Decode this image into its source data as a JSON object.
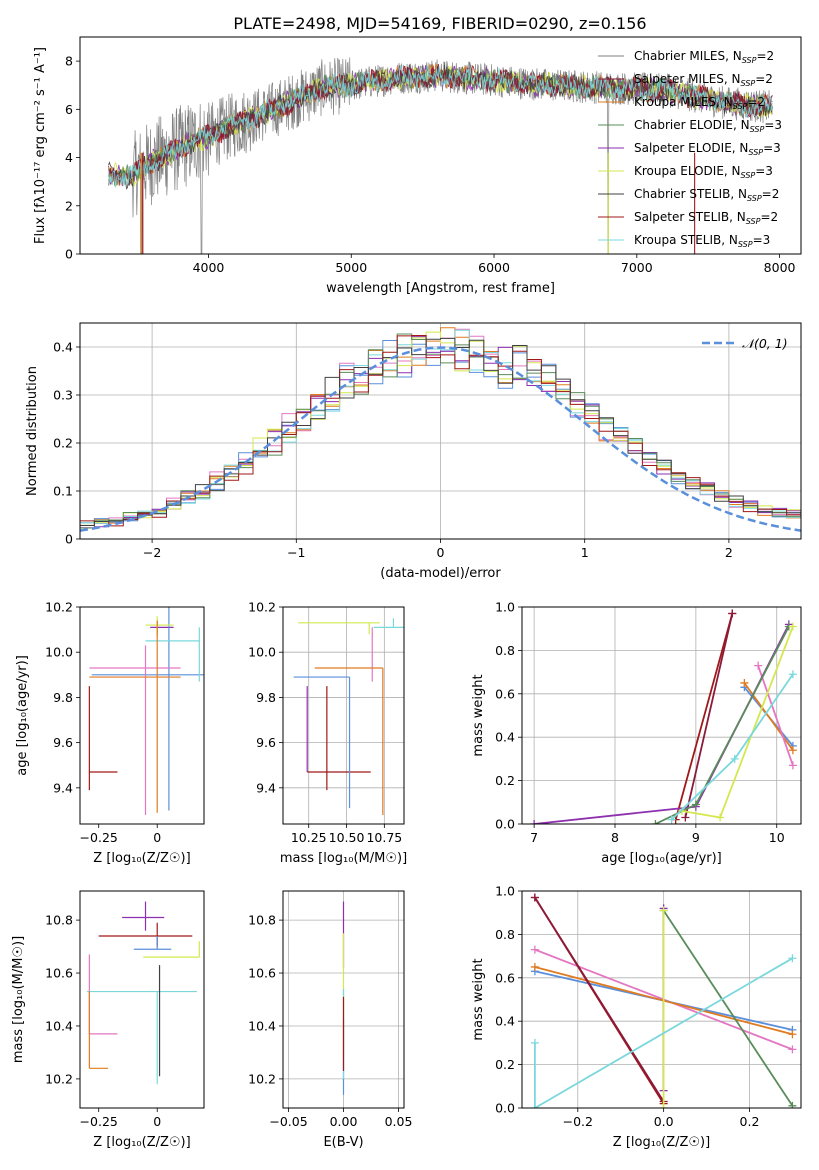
{
  "figure_title": "PLATE=2498, MJD=54169, FIBERID=0290, z=0.156",
  "colors": {
    "series": [
      "#808080",
      "#8b1a3b",
      "#e07b20",
      "#5a8c5a",
      "#8e2fb0",
      "#d4e84e",
      "#404040",
      "#a01818",
      "#7ad8dc"
    ],
    "set2": [
      "#e377c2",
      "#5a8fdc",
      "#e07b20",
      "#8e2fb0",
      "#7ad8dc",
      "#d4e84e",
      "#5a8c5a",
      "#a01818",
      "#404040"
    ],
    "grid": "#b0b0b0",
    "normal_curve": "#5a8fdc"
  },
  "chart_data": [
    {
      "id": "spectrum",
      "type": "line",
      "xlabel": "wavelength [Angstrom, rest frame]",
      "ylabel": "Flux [f$_\\lambda$10$^{-17}$ erg cm$^{-2}$ s$^{-1}$ A$^{-1}$]",
      "ylabel_display": "Flux [fλ10⁻¹⁷ erg cm⁻² s⁻¹ A⁻¹]",
      "xlim": [
        3100,
        8150
      ],
      "ylim": [
        0,
        9
      ],
      "xticks": [
        4000,
        5000,
        6000,
        7000,
        8000
      ],
      "yticks": [
        0,
        2,
        4,
        6,
        8
      ],
      "legend_position": "right",
      "legend": [
        {
          "name": "Chabrier MILES, N",
          "sub": "SSP",
          "suffix": "=2"
        },
        {
          "name": "Salpeter MILES, N",
          "sub": "SSP",
          "suffix": "=2"
        },
        {
          "name": "Kroupa MILES, N",
          "sub": "SSP",
          "suffix": "=2"
        },
        {
          "name": "Chabrier ELODIE, N",
          "sub": "SSP",
          "suffix": "=3"
        },
        {
          "name": "Salpeter ELODIE, N",
          "sub": "SSP",
          "suffix": "=3"
        },
        {
          "name": "Kroupa ELODIE, N",
          "sub": "SSP",
          "suffix": "=3"
        },
        {
          "name": "Chabrier STELIB, N",
          "sub": "SSP",
          "suffix": "=2"
        },
        {
          "name": "Salpeter STELIB, N",
          "sub": "SSP",
          "suffix": "=2"
        },
        {
          "name": "Kroupa STELIB, N",
          "sub": "SSP",
          "suffix": "=3"
        }
      ],
      "continuum": {
        "x": [
          3300,
          3450,
          3600,
          3800,
          4000,
          4200,
          4500,
          4800,
          5000,
          5300,
          5600,
          6000,
          6400,
          6800,
          7200,
          7600,
          7900
        ],
        "y": [
          3.3,
          3.2,
          3.8,
          4.4,
          4.9,
          5.4,
          6.1,
          6.9,
          7.0,
          7.3,
          7.4,
          7.2,
          7.0,
          6.9,
          6.8,
          6.3,
          6.1
        ]
      }
    },
    {
      "id": "residuals",
      "type": "histogram",
      "xlabel": "(data-model)/error",
      "ylabel": "Normed distribution",
      "xlim": [
        -2.5,
        2.5
      ],
      "ylim": [
        0,
        0.45
      ],
      "xticks": [
        -2,
        -1,
        0,
        1,
        2
      ],
      "yticks": [
        0,
        0.1,
        0.2,
        0.3,
        0.4
      ],
      "legend": "𝒩(0, 1)",
      "bin_width": 0.1
    },
    {
      "id": "age_vs_Z",
      "type": "scatter",
      "xlabel": "Z [log₁₀(Z/Z☉)]",
      "ylabel": "age  [log₁₀(age/yr)]",
      "xlim": [
        -0.33,
        0.2
      ],
      "ylim": [
        9.24,
        10.2
      ],
      "xticks": [
        -0.25,
        0.0
      ],
      "ytick_labels": [
        "9.4",
        "9.6",
        "9.8",
        "10.0",
        "10.2"
      ],
      "yticks": [
        9.4,
        9.6,
        9.8,
        10.0,
        10.2
      ],
      "points": [
        {
          "x": 0.0,
          "y": 10.11,
          "xerr": [
            0.03,
            0.07
          ],
          "yerr": [
            0.03,
            0.03
          ]
        },
        {
          "x": -0.29,
          "y": 9.47,
          "xerr": [
            0.0,
            0.12
          ],
          "yerr": [
            0.08,
            0.38
          ]
        },
        {
          "x": 0.05,
          "y": 9.9,
          "xerr": [
            0.33,
            0.15
          ],
          "yerr": [
            0.6,
            0.3
          ]
        },
        {
          "x": 0.0,
          "y": 10.12,
          "xerr": [
            0.05,
            0.07
          ],
          "yerr": [
            0.05,
            0.04
          ]
        },
        {
          "x": 0.18,
          "y": 10.05,
          "xerr": [
            0.23,
            0.0
          ],
          "yerr": [
            0.18,
            0.06
          ]
        },
        {
          "x": -0.05,
          "y": 9.93,
          "xerr": [
            0.24,
            0.15
          ],
          "yerr": [
            0.65,
            0.1
          ]
        },
        {
          "x": 0.0,
          "y": 9.89,
          "xerr": [
            0.29,
            0.1
          ],
          "yerr": [
            0.6,
            0.25
          ]
        }
      ]
    },
    {
      "id": "age_vs_mass",
      "type": "scatter",
      "xlabel": "mass [log₁₀(M/M☉)]",
      "ylabel": "",
      "xlim": [
        10.08,
        10.88
      ],
      "ylim": [
        9.24,
        10.2
      ],
      "xticks": [
        10.25,
        10.5,
        10.75
      ],
      "xtick_labels": [
        "10.25",
        "10.50",
        "10.75"
      ],
      "ytick_labels": [
        "9.4",
        "9.6",
        "9.8",
        "10.0",
        "10.2"
      ],
      "yticks": [
        9.4,
        9.6,
        9.8,
        10.0,
        10.2
      ],
      "points": [
        {
          "x": 10.24,
          "y": 9.47,
          "xerr": [
            0.0,
            0.0
          ],
          "yerr": [
            0.0,
            0.38
          ]
        },
        {
          "x": 10.37,
          "y": 9.47,
          "xerr": [
            0.13,
            0.29
          ],
          "yerr": [
            0.08,
            0.38
          ]
        },
        {
          "x": 10.52,
          "y": 9.89,
          "xerr": [
            0.37,
            0.0
          ],
          "yerr": [
            0.58,
            0.0
          ]
        },
        {
          "x": 10.65,
          "y": 10.13,
          "xerr": [
            0.47,
            0.07
          ],
          "yerr": [
            0.05,
            0.0
          ]
        },
        {
          "x": 10.81,
          "y": 10.11,
          "xerr": [
            0.13,
            0.07
          ],
          "yerr": [
            0.0,
            0.04
          ]
        },
        {
          "x": 10.67,
          "y": 10.05,
          "xerr": [
            0.0,
            0.0
          ],
          "yerr": [
            0.18,
            0.06
          ]
        },
        {
          "x": 10.74,
          "y": 9.93,
          "xerr": [
            0.45,
            0.0
          ],
          "yerr": [
            0.65,
            0.0
          ]
        }
      ]
    },
    {
      "id": "weight_vs_age",
      "type": "line",
      "xlabel": "age  [log₁₀(age/yr)]",
      "ylabel": "mass weight",
      "xlim": [
        6.85,
        10.3
      ],
      "ylim": [
        0,
        1
      ],
      "xticks": [
        7,
        8,
        9,
        10
      ],
      "yticks": [
        0,
        0.2,
        0.4,
        0.6,
        0.8,
        1.0
      ],
      "ytick_labels": [
        "0.0",
        "0.2",
        "0.4",
        "0.6",
        "0.8",
        "1.0"
      ],
      "series": [
        {
          "x": [
            9.6,
            10.2
          ],
          "y": [
            0.63,
            0.36
          ]
        },
        {
          "x": [
            9.6,
            10.2
          ],
          "y": [
            0.65,
            0.34
          ]
        },
        {
          "x": [
            9.77,
            10.2
          ],
          "y": [
            0.73,
            0.27
          ]
        },
        {
          "x": [
            8.75,
            9.45
          ],
          "y": [
            0.02,
            0.97
          ]
        },
        {
          "x": [
            8.87,
            9.45
          ],
          "y": [
            0.03,
            0.97
          ]
        },
        {
          "x": [
            7.0,
            9.0,
            10.15
          ],
          "y": [
            0.0,
            0.08,
            0.92
          ]
        },
        {
          "x": [
            8.5,
            9.0,
            10.15
          ],
          "y": [
            0.0,
            0.09,
            0.91
          ]
        },
        {
          "x": [
            8.83,
            9.3,
            10.2
          ],
          "y": [
            0.06,
            0.03,
            0.91
          ]
        },
        {
          "x": [
            8.7,
            9.48,
            10.2
          ],
          "y": [
            0.02,
            0.3,
            0.69
          ]
        }
      ]
    },
    {
      "id": "mass_vs_Z",
      "type": "scatter",
      "xlabel": "Z [log₁₀(Z/Z☉)]",
      "ylabel": "mass [log₁₀(M/M☉)]",
      "xlim": [
        -0.33,
        0.2
      ],
      "ylim": [
        10.09,
        10.91
      ],
      "xticks": [
        -0.25,
        0.0
      ],
      "yticks": [
        10.2,
        10.4,
        10.6,
        10.8
      ],
      "points": [
        {
          "x": -0.05,
          "y": 10.81,
          "xerr": [
            0.1,
            0.08
          ],
          "yerr": [
            0.05,
            0.06
          ]
        },
        {
          "x": 0.0,
          "y": 10.74,
          "xerr": [
            0.25,
            0.15
          ],
          "yerr": [
            0.04,
            0.05
          ]
        },
        {
          "x": 0.0,
          "y": 10.69,
          "xerr": [
            0.1,
            0.06
          ],
          "yerr": [
            0.0,
            0.05
          ]
        },
        {
          "x": 0.18,
          "y": 10.66,
          "xerr": [
            0.24,
            0.0
          ],
          "yerr": [
            0.0,
            0.06
          ]
        },
        {
          "x": 0.0,
          "y": 10.53,
          "xerr": [
            0.3,
            0.17
          ],
          "yerr": [
            0.35,
            0.0
          ]
        },
        {
          "x": -0.29,
          "y": 10.37,
          "xerr": [
            0.0,
            0.12
          ],
          "yerr": [
            0.0,
            0.3
          ]
        },
        {
          "x": -0.29,
          "y": 10.24,
          "xerr": [
            0.0,
            0.08
          ],
          "yerr": [
            0.0,
            0.29
          ]
        },
        {
          "x": 0.01,
          "y": 10.53,
          "xerr": [
            0.0,
            0.0
          ],
          "yerr": [
            0.32,
            0.1
          ]
        }
      ]
    },
    {
      "id": "mass_vs_ebv",
      "type": "scatter",
      "xlabel": "E(B-V)",
      "ylabel": "",
      "xlim": [
        -0.055,
        0.055
      ],
      "ylim": [
        10.09,
        10.91
      ],
      "xticks": [
        -0.05,
        0.0,
        0.05
      ],
      "xtick_labels": [
        "−0.05",
        "0.00",
        "0.05"
      ],
      "yticks": [
        10.2,
        10.4,
        10.6,
        10.8
      ],
      "bars": [
        {
          "y0": 10.62,
          "y1": 10.87
        },
        {
          "y0": 10.3,
          "y1": 10.75
        },
        {
          "y0": 10.14,
          "y1": 10.43
        },
        {
          "y0": 10.2,
          "y1": 10.54
        },
        {
          "y0": 10.23,
          "y1": 10.51
        }
      ]
    },
    {
      "id": "weight_vs_Z",
      "type": "line",
      "xlabel": "Z [log₁₀(Z/Z☉)]",
      "ylabel": "mass weight",
      "xlim": [
        -0.33,
        0.32
      ],
      "ylim": [
        0,
        1
      ],
      "xticks": [
        -0.2,
        0.0,
        0.2
      ],
      "xtick_labels": [
        "−0.2",
        "0.0",
        "0.2"
      ],
      "yticks": [
        0,
        0.2,
        0.4,
        0.6,
        0.8,
        1.0
      ],
      "ytick_labels": [
        "0.0",
        "0.2",
        "0.4",
        "0.6",
        "0.8",
        "1.0"
      ],
      "series": [
        {
          "x": [
            -0.3,
            0.3
          ],
          "y": [
            0.73,
            0.27
          ]
        },
        {
          "x": [
            -0.3,
            0.3
          ],
          "y": [
            0.63,
            0.36
          ]
        },
        {
          "x": [
            -0.3,
            0.3
          ],
          "y": [
            0.65,
            0.34
          ]
        },
        {
          "x": [
            -0.3,
            0.0
          ],
          "y": [
            0.97,
            0.02
          ]
        },
        {
          "x": [
            -0.3,
            0.0
          ],
          "y": [
            0.97,
            0.03
          ]
        },
        {
          "x": [
            0.0,
            0.0
          ],
          "y": [
            0.08,
            0.92
          ]
        },
        {
          "x": [
            0.0,
            0.3
          ],
          "y": [
            0.91,
            0.01
          ]
        },
        {
          "x": [
            0.0,
            0.0
          ],
          "y": [
            0.0,
            0.91
          ]
        },
        {
          "x": [
            -0.3,
            -0.3,
            0.3
          ],
          "y": [
            0.3,
            0.0,
            0.69
          ]
        }
      ]
    }
  ]
}
